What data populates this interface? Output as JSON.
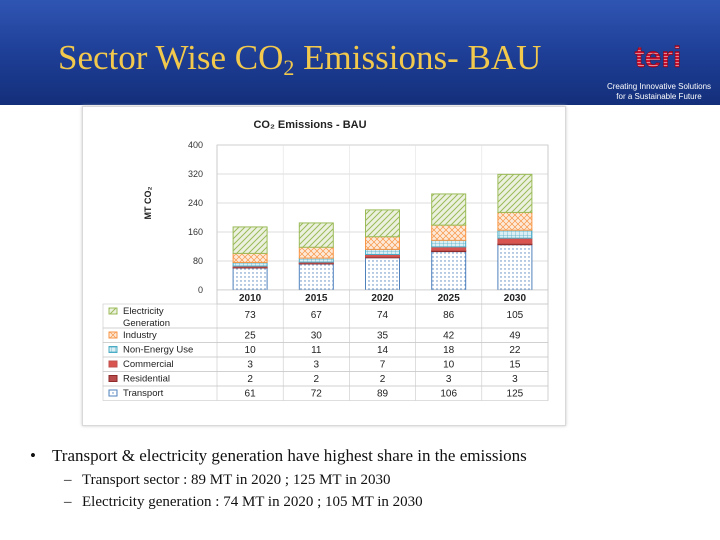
{
  "slide": {
    "title_main": "Sector Wise CO",
    "title_sub": "2",
    "title_rest": " Emissions- BAU",
    "logo_text": "teri",
    "tagline_line1": "Creating Innovative Solutions",
    "tagline_line2": "for a Sustainable Future",
    "bullet_symbol": "•",
    "sub_symbol": "–",
    "bullet_main": "Transport & electricity generation have highest share in the emissions",
    "bullet_sub1": "Transport sector        : 89 MT in 2020 ;  125 MT in 2030",
    "bullet_sub2": "Electricity generation : 74 MT  in 2020 ;  105 MT in 2030"
  },
  "colors": {
    "header_blue": "#1d3d94",
    "title_yellow": "#f2c94c",
    "logo_red": "#c8102e"
  },
  "chart_data": {
    "type": "bar",
    "stacked": true,
    "title": "CO₂ Emissions - BAU",
    "ylabel": "MT CO₂",
    "ylim": [
      0,
      400
    ],
    "yticks": [
      0,
      80,
      160,
      240,
      320,
      400
    ],
    "grid": true,
    "categories": [
      "2010",
      "2015",
      "2020",
      "2025",
      "2030"
    ],
    "series": [
      {
        "name": "Transport",
        "values": [
          61,
          72,
          89,
          106,
          125
        ],
        "color": "#4f81bd",
        "fill": "#dce6f2",
        "pattern": "dots"
      },
      {
        "name": "Residential",
        "values": [
          2,
          2,
          2,
          3,
          3
        ],
        "color": "#8e2a2a",
        "fill": "#b84c4c",
        "pattern": "solid"
      },
      {
        "name": "Commercial",
        "values": [
          3,
          3,
          7,
          10,
          15
        ],
        "color": "#c0504d",
        "fill": "#d9534f",
        "pattern": "solid"
      },
      {
        "name": "Non-Energy Use",
        "values": [
          10,
          11,
          14,
          18,
          22
        ],
        "color": "#4bacc6",
        "fill": "#daeef3",
        "pattern": "grid"
      },
      {
        "name": "Industry",
        "values": [
          25,
          30,
          35,
          42,
          49
        ],
        "color": "#f79646",
        "fill": "#fde9d9",
        "pattern": "cross"
      },
      {
        "name": "Electricity Generation",
        "values": [
          73,
          67,
          74,
          86,
          105
        ],
        "color": "#9bbb59",
        "fill": "#ebf1de",
        "pattern": "diag"
      }
    ],
    "table_rows_order": [
      "Electricity Generation",
      "Industry",
      "Non-Energy Use",
      "Commercial",
      "Residential",
      "Transport"
    ]
  }
}
